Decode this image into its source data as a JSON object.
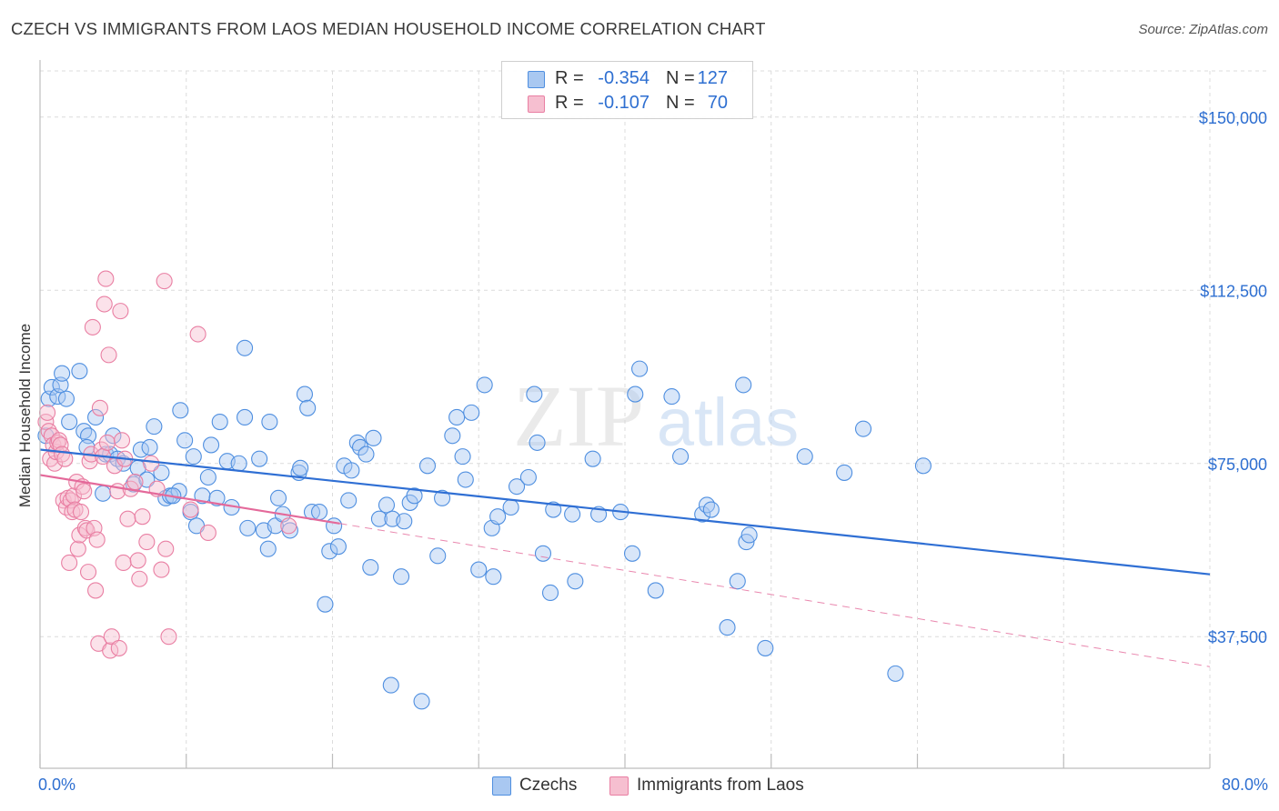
{
  "title": "CZECH VS IMMIGRANTS FROM LAOS MEDIAN HOUSEHOLD INCOME CORRELATION CHART",
  "source": "Source: ZipAtlas.com",
  "watermark": "ZIPatlas",
  "colors": {
    "czechs": "#4f8fe0",
    "czechs_fill": "#a9c8f1",
    "laos": "#e97fa3",
    "laos_fill": "#f6bfd0",
    "czech_line": "#2f6fd4",
    "laos_line": "#e4699a",
    "value_text": "#2e6fd1",
    "grid": "#dcdcdc"
  },
  "legend_top": {
    "rows": [
      {
        "r_label": "R =",
        "r_value": "-0.354",
        "n_label": "N =",
        "n_value": "127"
      },
      {
        "r_label": "R =",
        "r_value": "-0.107",
        "n_label": "N =",
        "n_value": "70"
      }
    ]
  },
  "legend_bottom": {
    "czechs": "Czechs",
    "laos": "Immigrants from Laos"
  },
  "chart_data": {
    "type": "scatter",
    "title": "CZECH VS IMMIGRANTS FROM LAOS MEDIAN HOUSEHOLD INCOME CORRELATION CHART",
    "xlabel": "",
    "ylabel": "Median Household Income",
    "xlim": [
      0,
      80
    ],
    "ylim": [
      9000,
      160000
    ],
    "x_tick_labels": [
      "0.0%",
      "80.0%"
    ],
    "y_ticks": [
      37500,
      75000,
      112500,
      150000
    ],
    "y_tick_labels": [
      "$37,500",
      "$75,000",
      "$112,500",
      "$150,000"
    ],
    "grid": true,
    "legend_position": "top-center",
    "series": [
      {
        "name": "Czechs",
        "r": -0.354,
        "n": 127,
        "trend": {
          "x": [
            0,
            80
          ],
          "y": [
            78000,
            51000
          ]
        },
        "points": [
          [
            0.4,
            81
          ],
          [
            0.6,
            89
          ],
          [
            0.8,
            91.5
          ],
          [
            1.2,
            89.5
          ],
          [
            1.4,
            92
          ],
          [
            1.5,
            94.5
          ],
          [
            1.8,
            89
          ],
          [
            2,
            84
          ],
          [
            2.7,
            95
          ],
          [
            3,
            82
          ],
          [
            3.3,
            81
          ],
          [
            3.8,
            85
          ],
          [
            4.3,
            68.5
          ],
          [
            4.5,
            77
          ],
          [
            4.8,
            77
          ],
          [
            5,
            81
          ],
          [
            5.3,
            76
          ],
          [
            5.7,
            75
          ],
          [
            6.4,
            70.5
          ],
          [
            6.7,
            74
          ],
          [
            6.9,
            78
          ],
          [
            7.3,
            71.5
          ],
          [
            7.5,
            78.5
          ],
          [
            7.8,
            83
          ],
          [
            8.3,
            73
          ],
          [
            8.6,
            67.5
          ],
          [
            8.9,
            68
          ],
          [
            9.5,
            69
          ],
          [
            9.6,
            86.5
          ],
          [
            9.9,
            80
          ],
          [
            10.3,
            64.5
          ],
          [
            10.5,
            76.5
          ],
          [
            10.7,
            61.5
          ],
          [
            11.1,
            68
          ],
          [
            11.5,
            72
          ],
          [
            11.7,
            79
          ],
          [
            12.1,
            67.5
          ],
          [
            12.3,
            84
          ],
          [
            12.8,
            75.5
          ],
          [
            13.1,
            65.5
          ],
          [
            13.6,
            75
          ],
          [
            14,
            85
          ],
          [
            14.2,
            61
          ],
          [
            15,
            76
          ],
          [
            15.3,
            60.5
          ],
          [
            15.6,
            56.5
          ],
          [
            15.7,
            84
          ],
          [
            16.1,
            61.5
          ],
          [
            16.3,
            67.5
          ],
          [
            16.6,
            64
          ],
          [
            17.1,
            60.5
          ],
          [
            17.7,
            73
          ],
          [
            17.8,
            74
          ],
          [
            18.1,
            90
          ],
          [
            18.3,
            87
          ],
          [
            18.6,
            64.5
          ],
          [
            19.1,
            64.5
          ],
          [
            19.5,
            44.5
          ],
          [
            19.8,
            56
          ],
          [
            20.1,
            61.5
          ],
          [
            20.4,
            57
          ],
          [
            20.8,
            74.5
          ],
          [
            21.1,
            67
          ],
          [
            21.3,
            73.5
          ],
          [
            21.7,
            79.5
          ],
          [
            21.9,
            78.5
          ],
          [
            22.3,
            77
          ],
          [
            22.6,
            52.5
          ],
          [
            22.8,
            80.5
          ],
          [
            23.2,
            63
          ],
          [
            23.7,
            66
          ],
          [
            24,
            27
          ],
          [
            24.1,
            63
          ],
          [
            24.7,
            50.5
          ],
          [
            24.9,
            62.5
          ],
          [
            25.3,
            66.5
          ],
          [
            25.6,
            68
          ],
          [
            26.1,
            23.5
          ],
          [
            26.5,
            74.5
          ],
          [
            27.2,
            55
          ],
          [
            27.5,
            67.5
          ],
          [
            28.2,
            81
          ],
          [
            28.5,
            85
          ],
          [
            28.9,
            76.5
          ],
          [
            29.1,
            71.5
          ],
          [
            29.5,
            86
          ],
          [
            30,
            52
          ],
          [
            30.4,
            92
          ],
          [
            30.9,
            61
          ],
          [
            31,
            50.5
          ],
          [
            31.3,
            63.5
          ],
          [
            32.2,
            65.5
          ],
          [
            32.6,
            70
          ],
          [
            33.4,
            72
          ],
          [
            33.8,
            90
          ],
          [
            34,
            79.5
          ],
          [
            34.4,
            55.5
          ],
          [
            34.9,
            47
          ],
          [
            35.1,
            65
          ],
          [
            36.4,
            64
          ],
          [
            36.6,
            49.5
          ],
          [
            37.8,
            76
          ],
          [
            38.2,
            64
          ],
          [
            39.7,
            64.5
          ],
          [
            40.5,
            55.5
          ],
          [
            40.7,
            90
          ],
          [
            41,
            95.5
          ],
          [
            42.1,
            47.5
          ],
          [
            43.2,
            89.5
          ],
          [
            43.8,
            76.5
          ],
          [
            45.3,
            64
          ],
          [
            45.6,
            66
          ],
          [
            45.9,
            65
          ],
          [
            47,
            39.5
          ],
          [
            47.7,
            49.5
          ],
          [
            48.1,
            92
          ],
          [
            48.3,
            58
          ],
          [
            48.5,
            59.5
          ],
          [
            49.6,
            35
          ],
          [
            52.3,
            76.5
          ],
          [
            55,
            73
          ],
          [
            56.3,
            82.5
          ],
          [
            58.5,
            29.5
          ],
          [
            60.4,
            74.5
          ],
          [
            14,
            100
          ],
          [
            9.1,
            68
          ],
          [
            3.2,
            78.5
          ]
        ]
      },
      {
        "name": "Immigrants from Laos",
        "r": -0.107,
        "n": 70,
        "trend_solid": {
          "x": [
            0,
            20.5
          ],
          "y": [
            72.5,
            62
          ]
        },
        "trend_dashed": {
          "x": [
            20.5,
            80
          ],
          "y": [
            62,
            31
          ]
        },
        "points": [
          [
            0.4,
            84
          ],
          [
            0.5,
            86
          ],
          [
            0.6,
            82
          ],
          [
            0.7,
            76
          ],
          [
            0.8,
            81
          ],
          [
            0.9,
            79
          ],
          [
            1,
            75
          ],
          [
            1.1,
            77.5
          ],
          [
            1.2,
            79.5
          ],
          [
            1.3,
            80
          ],
          [
            1.4,
            79
          ],
          [
            1.5,
            77
          ],
          [
            1.6,
            67
          ],
          [
            1.7,
            76
          ],
          [
            1.8,
            65.5
          ],
          [
            1.9,
            67.5
          ],
          [
            2,
            53.5
          ],
          [
            2.1,
            67
          ],
          [
            2.2,
            64.5
          ],
          [
            2.3,
            68
          ],
          [
            2.4,
            65
          ],
          [
            2.5,
            71
          ],
          [
            2.6,
            56.5
          ],
          [
            2.7,
            59.5
          ],
          [
            2.8,
            64.5
          ],
          [
            2.9,
            70
          ],
          [
            3,
            69
          ],
          [
            3.1,
            61
          ],
          [
            3.2,
            60.5
          ],
          [
            3.3,
            51.5
          ],
          [
            3.4,
            75.5
          ],
          [
            3.5,
            77
          ],
          [
            3.6,
            104.5
          ],
          [
            3.7,
            61
          ],
          [
            3.8,
            47.5
          ],
          [
            3.9,
            58.5
          ],
          [
            4,
            36
          ],
          [
            4.1,
            87
          ],
          [
            4.2,
            78
          ],
          [
            4.3,
            76.5
          ],
          [
            4.4,
            109.5
          ],
          [
            4.5,
            115
          ],
          [
            4.6,
            79.5
          ],
          [
            4.7,
            98.5
          ],
          [
            4.8,
            34.5
          ],
          [
            4.9,
            37.5
          ],
          [
            5.1,
            74.5
          ],
          [
            5.3,
            69
          ],
          [
            5.4,
            35
          ],
          [
            5.5,
            108
          ],
          [
            5.6,
            80
          ],
          [
            5.7,
            53.5
          ],
          [
            5.8,
            76
          ],
          [
            6,
            63
          ],
          [
            6.2,
            69.5
          ],
          [
            6.5,
            71
          ],
          [
            6.7,
            54
          ],
          [
            6.8,
            50
          ],
          [
            7,
            63.5
          ],
          [
            7.3,
            58
          ],
          [
            7.6,
            75
          ],
          [
            8,
            69.5
          ],
          [
            8.3,
            52
          ],
          [
            8.5,
            114.5
          ],
          [
            8.6,
            56.5
          ],
          [
            8.8,
            37.5
          ],
          [
            10.3,
            65
          ],
          [
            10.8,
            103
          ],
          [
            11.5,
            60
          ],
          [
            17,
            61.5
          ]
        ]
      }
    ]
  }
}
